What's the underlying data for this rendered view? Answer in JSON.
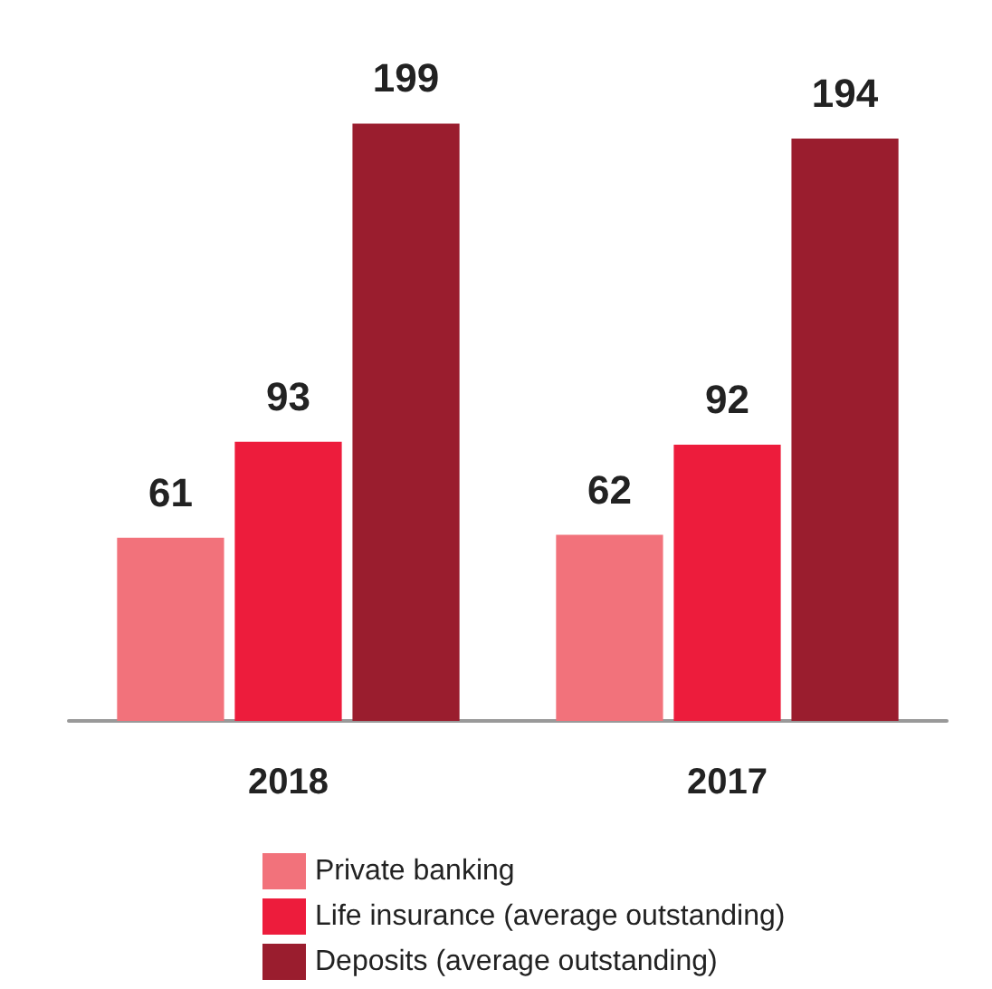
{
  "chart_data": {
    "type": "bar",
    "categories": [
      "2018",
      "2017"
    ],
    "series": [
      {
        "name": "Private banking",
        "color": "#f2727b",
        "values": [
          61,
          62
        ]
      },
      {
        "name": "Life insurance (average outstanding)",
        "color": "#ed1c3c",
        "values": [
          93,
          92
        ]
      },
      {
        "name": "Deposits (average outstanding)",
        "color": "#9a1d2e",
        "values": [
          199,
          194
        ]
      }
    ],
    "data_labels": true,
    "legend": "bottom",
    "grid": false
  }
}
